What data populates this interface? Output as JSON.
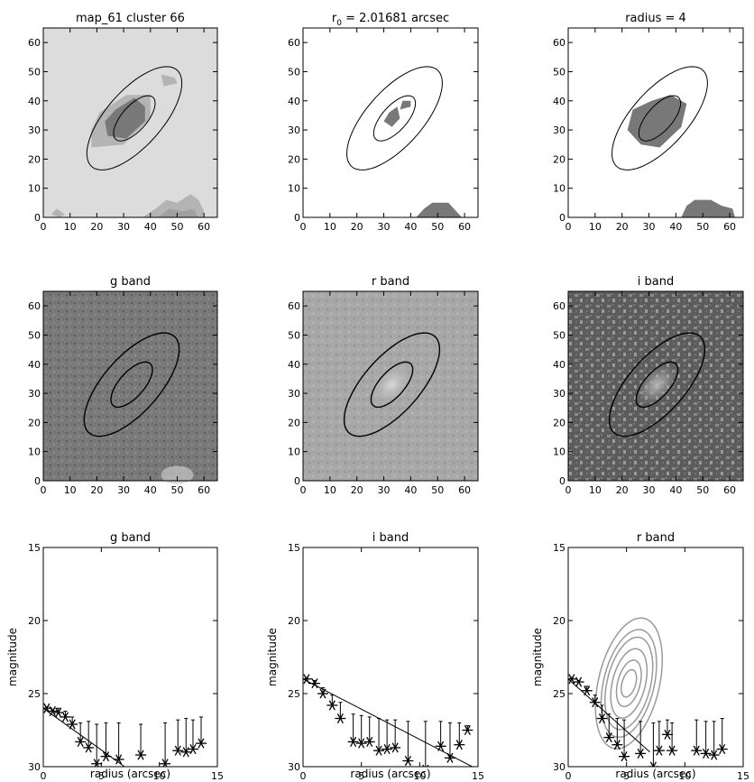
{
  "figure": {
    "panel_titles": [
      "map_61 cluster 66",
      "r0 = 2.01681 arcsec",
      "radius = 4",
      "g band",
      "r band",
      "i band",
      "g band",
      "i band",
      "r band"
    ],
    "title_r0": {
      "prefix": "r",
      "sub": "0",
      "rest": " = 2.01681 arcsec"
    },
    "xlabel_profile": "radius (arcsec)",
    "ylabel_profile": "magnitude",
    "colors": {
      "light_bg": "#dcdcdc",
      "mid_gray": "#b4b4b4",
      "dark_blob": "#787878",
      "profile_contours": "#9a9a9a",
      "text": "#000000"
    }
  },
  "chart_data": [
    {
      "type": "heatmap",
      "title": "map_61 cluster 66",
      "xlim": [
        0,
        65
      ],
      "ylim": [
        0,
        65
      ],
      "xticks": [
        0,
        10,
        20,
        30,
        40,
        50,
        60
      ],
      "yticks": [
        0,
        10,
        20,
        30,
        40,
        50,
        60
      ],
      "ellipses": {
        "center": [
          34,
          34
        ],
        "angle_deg": 45,
        "inner_axes": [
          10,
          4.5
        ],
        "outer_axes": [
          23,
          10
        ]
      }
    },
    {
      "type": "heatmap",
      "title": "r0 = 2.01681 arcsec",
      "xlim": [
        0,
        65
      ],
      "ylim": [
        0,
        65
      ],
      "xticks": [
        0,
        10,
        20,
        30,
        40,
        50,
        60
      ],
      "yticks": [
        0,
        10,
        20,
        30,
        40,
        50,
        60
      ],
      "ellipses": {
        "center": [
          34,
          34
        ],
        "angle_deg": 45,
        "inner_axes": [
          10,
          4.5
        ],
        "outer_axes": [
          23,
          10
        ]
      }
    },
    {
      "type": "heatmap",
      "title": "radius = 4",
      "xlim": [
        0,
        65
      ],
      "ylim": [
        0,
        65
      ],
      "xticks": [
        0,
        10,
        20,
        30,
        40,
        50,
        60
      ],
      "yticks": [
        0,
        10,
        20,
        30,
        40,
        50,
        60
      ],
      "ellipses": {
        "center": [
          34,
          34
        ],
        "angle_deg": 45,
        "inner_axes": [
          10,
          4.5
        ],
        "outer_axes": [
          23,
          10
        ]
      }
    },
    {
      "type": "heatmap",
      "title": "g band",
      "xlim": [
        0,
        65
      ],
      "ylim": [
        0,
        65
      ],
      "xticks": [
        0,
        10,
        20,
        30,
        40,
        50,
        60
      ],
      "yticks": [
        0,
        10,
        20,
        30,
        40,
        50,
        60
      ],
      "ellipses": {
        "center": [
          33,
          33
        ],
        "angle_deg": 45,
        "inner_axes": [
          10,
          4.5
        ],
        "outer_axes": [
          23,
          10
        ]
      }
    },
    {
      "type": "heatmap",
      "title": "r band",
      "xlim": [
        0,
        65
      ],
      "ylim": [
        0,
        65
      ],
      "xticks": [
        0,
        10,
        20,
        30,
        40,
        50,
        60
      ],
      "yticks": [
        0,
        10,
        20,
        30,
        40,
        50,
        60
      ],
      "ellipses": {
        "center": [
          33,
          33
        ],
        "angle_deg": 45,
        "inner_axes": [
          10,
          4.5
        ],
        "outer_axes": [
          23,
          10
        ]
      }
    },
    {
      "type": "heatmap",
      "title": "i band",
      "xlim": [
        0,
        65
      ],
      "ylim": [
        0,
        65
      ],
      "xticks": [
        0,
        10,
        20,
        30,
        40,
        50,
        60
      ],
      "yticks": [
        0,
        10,
        20,
        30,
        40,
        50,
        60
      ],
      "ellipses": {
        "center": [
          33,
          33
        ],
        "angle_deg": 45,
        "inner_axes": [
          10,
          4.5
        ],
        "outer_axes": [
          23,
          10
        ]
      }
    },
    {
      "type": "scatter",
      "title": "g band",
      "xlabel": "radius (arcsec)",
      "ylabel": "magnitude",
      "xlim": [
        0,
        15
      ],
      "ylim": [
        30,
        15
      ],
      "xticks": [
        0,
        5,
        10,
        15
      ],
      "yticks": [
        15,
        20,
        25,
        30
      ],
      "points": [
        [
          0.3,
          26.0
        ],
        [
          0.8,
          26.2
        ],
        [
          1.3,
          26.3
        ],
        [
          1.9,
          26.6
        ],
        [
          2.5,
          27.1
        ],
        [
          3.2,
          28.3
        ],
        [
          3.9,
          28.7
        ],
        [
          4.6,
          29.8
        ],
        [
          5.4,
          29.3
        ],
        [
          6.5,
          29.5
        ],
        [
          8.4,
          29.2
        ],
        [
          10.5,
          29.8
        ],
        [
          11.6,
          28.9
        ],
        [
          12.3,
          29.0
        ],
        [
          12.9,
          28.8
        ],
        [
          13.6,
          28.4
        ]
      ],
      "errorbars": [
        [
          0.3,
          26.0,
          25.9
        ],
        [
          0.8,
          26.2,
          26.1
        ],
        [
          1.3,
          26.3,
          26.0
        ],
        [
          1.9,
          26.6,
          26.2
        ],
        [
          2.5,
          27.1,
          26.6
        ],
        [
          3.2,
          28.3,
          27.0
        ],
        [
          3.9,
          28.7,
          26.9
        ],
        [
          4.6,
          29.8,
          27.1
        ],
        [
          5.4,
          29.3,
          27.0
        ],
        [
          6.5,
          29.5,
          27.0
        ],
        [
          8.4,
          29.2,
          27.1
        ],
        [
          10.5,
          29.8,
          27.0
        ],
        [
          11.6,
          28.9,
          26.8
        ],
        [
          12.3,
          29.0,
          26.7
        ],
        [
          12.9,
          28.8,
          26.8
        ],
        [
          13.6,
          28.4,
          26.6
        ]
      ],
      "fit_line": [
        [
          0.0,
          26.0
        ],
        [
          7.0,
          30.0
        ]
      ]
    },
    {
      "type": "scatter",
      "title": "i band",
      "xlabel": "radius (arcsec)",
      "ylabel": "magnitude",
      "xlim": [
        0,
        15
      ],
      "ylim": [
        30,
        15
      ],
      "xticks": [
        0,
        5,
        10,
        15
      ],
      "yticks": [
        15,
        20,
        25,
        30
      ],
      "points": [
        [
          0.3,
          24.0
        ],
        [
          1.0,
          24.3
        ],
        [
          1.7,
          25.0
        ],
        [
          2.5,
          25.8
        ],
        [
          3.2,
          26.7
        ],
        [
          4.3,
          28.3
        ],
        [
          5.0,
          28.4
        ],
        [
          5.7,
          28.3
        ],
        [
          6.5,
          28.9
        ],
        [
          7.2,
          28.8
        ],
        [
          7.9,
          28.7
        ],
        [
          9.0,
          29.6
        ],
        [
          10.5,
          30.2
        ],
        [
          11.8,
          28.6
        ],
        [
          12.6,
          29.4
        ],
        [
          13.4,
          28.5
        ],
        [
          14.1,
          27.5
        ]
      ],
      "errorbars": [
        [
          0.3,
          24.0,
          23.9
        ],
        [
          1.0,
          24.3,
          24.1
        ],
        [
          1.7,
          25.0,
          24.6
        ],
        [
          2.5,
          25.8,
          25.1
        ],
        [
          3.2,
          26.7,
          25.6
        ],
        [
          4.3,
          28.3,
          26.4
        ],
        [
          5.0,
          28.4,
          26.5
        ],
        [
          5.7,
          28.3,
          26.6
        ],
        [
          6.5,
          28.9,
          26.7
        ],
        [
          7.2,
          28.8,
          26.8
        ],
        [
          7.9,
          28.7,
          26.8
        ],
        [
          9.0,
          29.6,
          26.9
        ],
        [
          10.5,
          30.2,
          26.9
        ],
        [
          11.8,
          28.6,
          26.9
        ],
        [
          12.6,
          29.4,
          27.0
        ],
        [
          13.4,
          28.5,
          27.0
        ],
        [
          14.1,
          27.5,
          27.2
        ]
      ],
      "fit_line": [
        [
          0.0,
          24.0
        ],
        [
          14.5,
          30.0
        ]
      ]
    },
    {
      "type": "scatter",
      "title": "r band",
      "xlabel": "radius (arcsec)",
      "ylabel": "magnitude",
      "xlim": [
        0,
        15
      ],
      "ylim": [
        30,
        15
      ],
      "xticks": [
        0,
        5,
        10,
        15
      ],
      "yticks": [
        15,
        20,
        25,
        30
      ],
      "points": [
        [
          0.3,
          24.0
        ],
        [
          0.9,
          24.2
        ],
        [
          1.6,
          24.8
        ],
        [
          2.3,
          25.6
        ],
        [
          2.9,
          26.7
        ],
        [
          3.5,
          28.0
        ],
        [
          4.2,
          28.5
        ],
        [
          4.8,
          29.3
        ],
        [
          6.2,
          29.1
        ],
        [
          7.3,
          30.0
        ],
        [
          7.8,
          28.9
        ],
        [
          8.5,
          27.8
        ],
        [
          8.9,
          28.9
        ],
        [
          11.0,
          28.9
        ],
        [
          11.8,
          29.1
        ],
        [
          12.5,
          29.2
        ],
        [
          13.2,
          28.8
        ]
      ],
      "errorbars": [
        [
          0.3,
          24.0,
          23.9
        ],
        [
          0.9,
          24.2,
          24.1
        ],
        [
          1.6,
          24.8,
          24.5
        ],
        [
          2.3,
          25.6,
          25.1
        ],
        [
          2.9,
          26.7,
          25.8
        ],
        [
          3.5,
          28.0,
          26.4
        ],
        [
          4.2,
          28.5,
          26.7
        ],
        [
          4.8,
          29.3,
          26.8
        ],
        [
          6.2,
          29.1,
          26.9
        ],
        [
          7.3,
          30.0,
          27.0
        ],
        [
          7.8,
          28.9,
          26.9
        ],
        [
          8.5,
          27.8,
          26.8
        ],
        [
          8.9,
          28.9,
          27.0
        ],
        [
          11.0,
          28.9,
          26.8
        ],
        [
          11.8,
          29.1,
          26.9
        ],
        [
          12.5,
          29.2,
          26.9
        ],
        [
          13.2,
          28.8,
          26.7
        ]
      ],
      "fit_line": [
        [
          0.0,
          24.0
        ],
        [
          7.0,
          29.0
        ]
      ],
      "contours": {
        "center": [
          5.2,
          24.3
        ],
        "angle_deg": 35,
        "sizes": [
          [
            3.5,
            1.7
          ],
          [
            2.9,
            1.4
          ],
          [
            2.5,
            1.2
          ],
          [
            1.9,
            0.9
          ],
          [
            1.3,
            0.6
          ],
          [
            0.8,
            0.35
          ]
        ]
      }
    }
  ]
}
